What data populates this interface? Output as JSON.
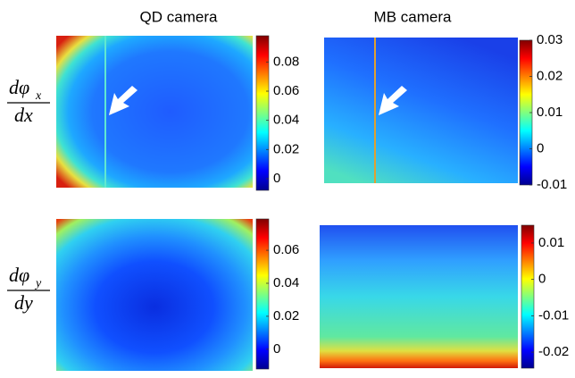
{
  "chart_data": {
    "type": "heatmap-grid",
    "column_titles": [
      "QD camera",
      "MB camera"
    ],
    "row_labels": [
      {
        "numerator": "dφ",
        "subscript": "x",
        "denominator": "dx"
      },
      {
        "numerator": "dφ",
        "subscript": "y",
        "denominator": "dy"
      }
    ],
    "panels": [
      {
        "clim": [
          -0.008,
          0.098
        ],
        "cticks": [
          0,
          0.02,
          0.04,
          0.06,
          0.08
        ]
      },
      {
        "clim": [
          -0.01,
          0.03
        ],
        "cticks": [
          -0.01,
          0,
          0.01,
          0.02,
          0.03
        ]
      },
      {
        "clim": [
          -0.012,
          0.079
        ],
        "cticks": [
          0,
          0.02,
          0.04,
          0.06
        ]
      },
      {
        "clim": [
          -0.0244,
          0.0149
        ],
        "cticks": [
          -0.02,
          -0.01,
          0,
          0.01
        ]
      }
    ]
  }
}
